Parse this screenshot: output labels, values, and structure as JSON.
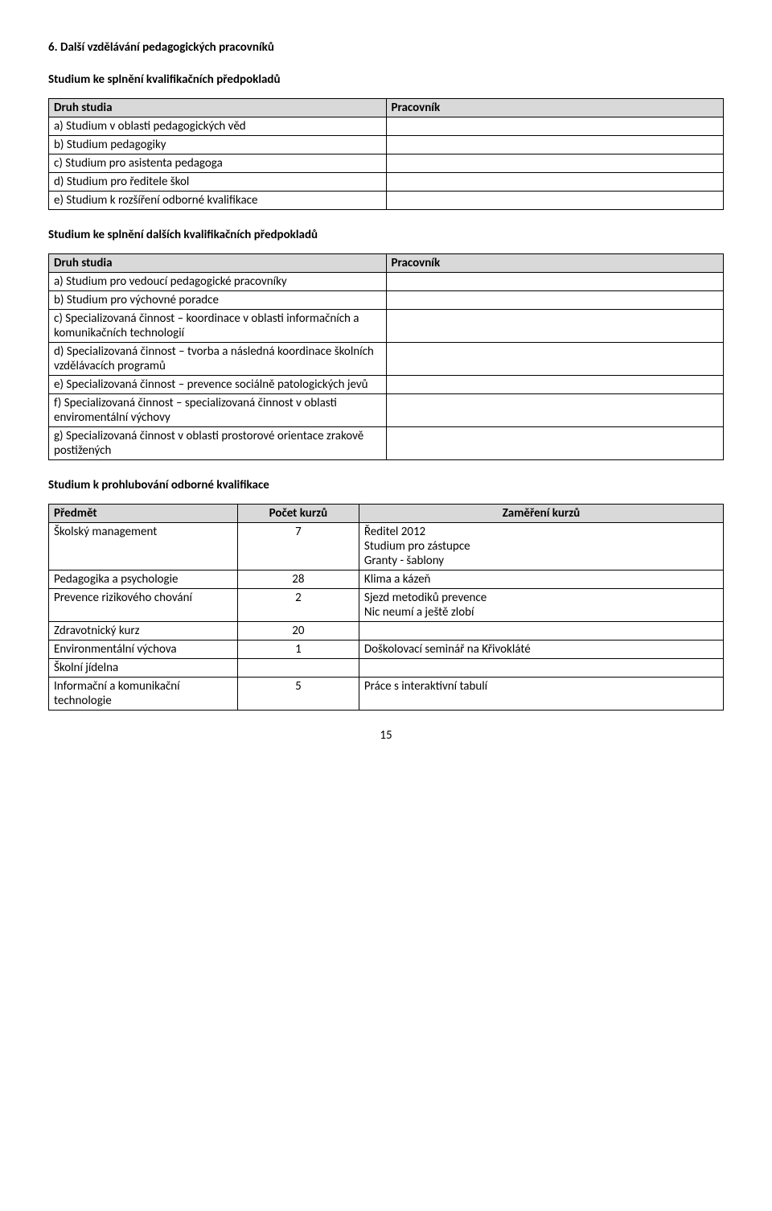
{
  "heading": "6. Další vzdělávání pedagogických pracovníků",
  "section1": {
    "title": "Studium ke splnění kvalifikačních předpokladů",
    "table": {
      "col1_header": "Druh studia",
      "col2_header": "Pracovník",
      "rows": [
        "a) Studium v oblasti pedagogických věd",
        "b) Studium pedagogiky",
        "c) Studium pro asistenta pedagoga",
        "d) Studium pro ředitele škol",
        "e) Studium k rozšíření odborné kvalifikace"
      ]
    }
  },
  "section2": {
    "title": "Studium ke splnění dalších kvalifikačních předpokladů",
    "table": {
      "col1_header": "Druh studia",
      "col2_header": "Pracovník",
      "rows": [
        "a) Studium pro vedoucí pedagogické pracovníky",
        "b) Studium pro výchovné poradce",
        "c) Specializovaná činnost – koordinace v oblasti informačních a komunikačních technologií",
        "d) Specializovaná činnost – tvorba a následná koordinace školních vzdělávacích programů",
        "e) Specializovaná činnost – prevence sociálně patologických jevů",
        "f) Specializovaná činnost – specializovaná činnost v oblasti enviromentální výchovy",
        "g) Specializovaná činnost v oblasti prostorové orientace zrakově postižených"
      ]
    }
  },
  "section3": {
    "title": "Studium k prohlubování odborné kvalifikace",
    "table": {
      "col1_header": "Předmět",
      "col2_header": "Počet kurzů",
      "col3_header": "Zaměření kurzů",
      "rows": [
        {
          "c1": "Školský management",
          "c2": "7",
          "c3": "Ředitel 2012\nStudium pro zástupce\n Granty - šablony"
        },
        {
          "c1": "Pedagogika a psychologie",
          "c2": "28",
          "c3": "Klima a kázeň"
        },
        {
          "c1": "Prevence rizikového chování",
          "c2": "2",
          "c3": "Sjezd metodiků prevence\nNic neumí a ještě zlobí"
        },
        {
          "c1": "Zdravotnický kurz",
          "c2": "20",
          "c3": ""
        },
        {
          "c1": "Environmentální výchova",
          "c2": "1",
          "c3": "Doškolovací seminář na Křivokláté"
        },
        {
          "c1": "Školní jídelna",
          "c2": "",
          "c3": ""
        },
        {
          "c1": "Informační a komunikační technologie",
          "c2": "5",
          "c3": "Práce s interaktivní tabulí"
        }
      ]
    }
  },
  "page_number": "15"
}
